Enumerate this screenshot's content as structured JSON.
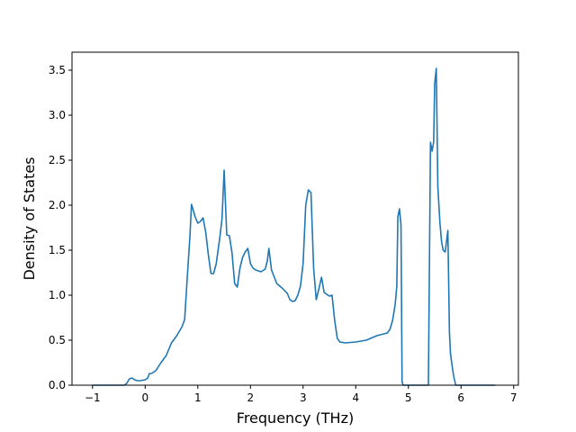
{
  "chart_data": {
    "type": "line",
    "title": "",
    "xlabel": "Frequency (THz)",
    "ylabel": "Density of States",
    "xlim": [
      -1.39,
      7.09
    ],
    "ylim": [
      0,
      3.7
    ],
    "xticks": [
      -1,
      0,
      1,
      2,
      3,
      4,
      5,
      6,
      7
    ],
    "yticks": [
      0.0,
      0.5,
      1.0,
      1.5,
      2.0,
      2.5,
      3.0,
      3.5
    ],
    "xtick_labels": [
      "−1",
      "0",
      "1",
      "2",
      "3",
      "4",
      "5",
      "6",
      "7"
    ],
    "ytick_labels": [
      "0.0",
      "0.5",
      "1.0",
      "1.5",
      "2.0",
      "2.5",
      "3.0",
      "3.5"
    ],
    "grid": false,
    "color": "#1f77b4",
    "series": [
      {
        "x": [
          -1.0,
          -0.4,
          -0.35,
          -0.3,
          -0.25,
          -0.2,
          -0.15,
          -0.1,
          0.0,
          0.05,
          0.08,
          0.12,
          0.2,
          0.3,
          0.4,
          0.5,
          0.6,
          0.7,
          0.75,
          0.8,
          0.85,
          0.88,
          0.95,
          1.0,
          1.05,
          1.1,
          1.15,
          1.2,
          1.25,
          1.3,
          1.35,
          1.42,
          1.46,
          1.5,
          1.55,
          1.6,
          1.65,
          1.7,
          1.75,
          1.8,
          1.85,
          1.9,
          1.95,
          2.0,
          2.05,
          2.1,
          2.2,
          2.28,
          2.32,
          2.35,
          2.4,
          2.5,
          2.6,
          2.7,
          2.75,
          2.8,
          2.85,
          2.9,
          2.95,
          3.0,
          3.05,
          3.1,
          3.15,
          3.2,
          3.25,
          3.3,
          3.35,
          3.4,
          3.5,
          3.55,
          3.6,
          3.65,
          3.7,
          3.8,
          4.0,
          4.2,
          4.4,
          4.6,
          4.65,
          4.7,
          4.75,
          4.78,
          4.8,
          4.83,
          4.86,
          4.88,
          4.9,
          5.0,
          5.1,
          5.2,
          5.3,
          5.38,
          5.42,
          5.45,
          5.48,
          5.5,
          5.53,
          5.56,
          5.6,
          5.63,
          5.66,
          5.7,
          5.75,
          5.78,
          5.8,
          5.83,
          5.86,
          5.9,
          5.95,
          6.0,
          6.03,
          6.1,
          6.3,
          6.5,
          6.65
        ],
        "y": [
          0.0,
          0.0,
          0.02,
          0.07,
          0.08,
          0.06,
          0.05,
          0.05,
          0.06,
          0.08,
          0.13,
          0.13,
          0.16,
          0.25,
          0.33,
          0.47,
          0.55,
          0.65,
          0.73,
          1.2,
          1.65,
          2.01,
          1.87,
          1.8,
          1.82,
          1.86,
          1.7,
          1.45,
          1.24,
          1.24,
          1.35,
          1.65,
          1.85,
          2.39,
          1.67,
          1.66,
          1.47,
          1.13,
          1.09,
          1.3,
          1.42,
          1.48,
          1.52,
          1.35,
          1.3,
          1.28,
          1.26,
          1.29,
          1.38,
          1.52,
          1.28,
          1.13,
          1.08,
          1.02,
          0.95,
          0.93,
          0.94,
          1.0,
          1.1,
          1.35,
          2.0,
          2.17,
          2.14,
          1.3,
          0.95,
          1.07,
          1.2,
          1.03,
          0.99,
          1.0,
          0.72,
          0.52,
          0.48,
          0.47,
          0.48,
          0.5,
          0.55,
          0.58,
          0.62,
          0.72,
          0.9,
          1.1,
          1.87,
          1.96,
          1.78,
          0.04,
          0.0,
          0.0,
          0.0,
          0.0,
          0.0,
          0.0,
          2.7,
          2.6,
          2.7,
          3.35,
          3.52,
          2.2,
          1.8,
          1.6,
          1.5,
          1.48,
          1.72,
          0.59,
          0.35,
          0.22,
          0.1,
          0.0,
          0.0,
          0.0,
          0.0,
          0.0,
          0.0,
          0.0,
          0.0
        ]
      }
    ]
  }
}
